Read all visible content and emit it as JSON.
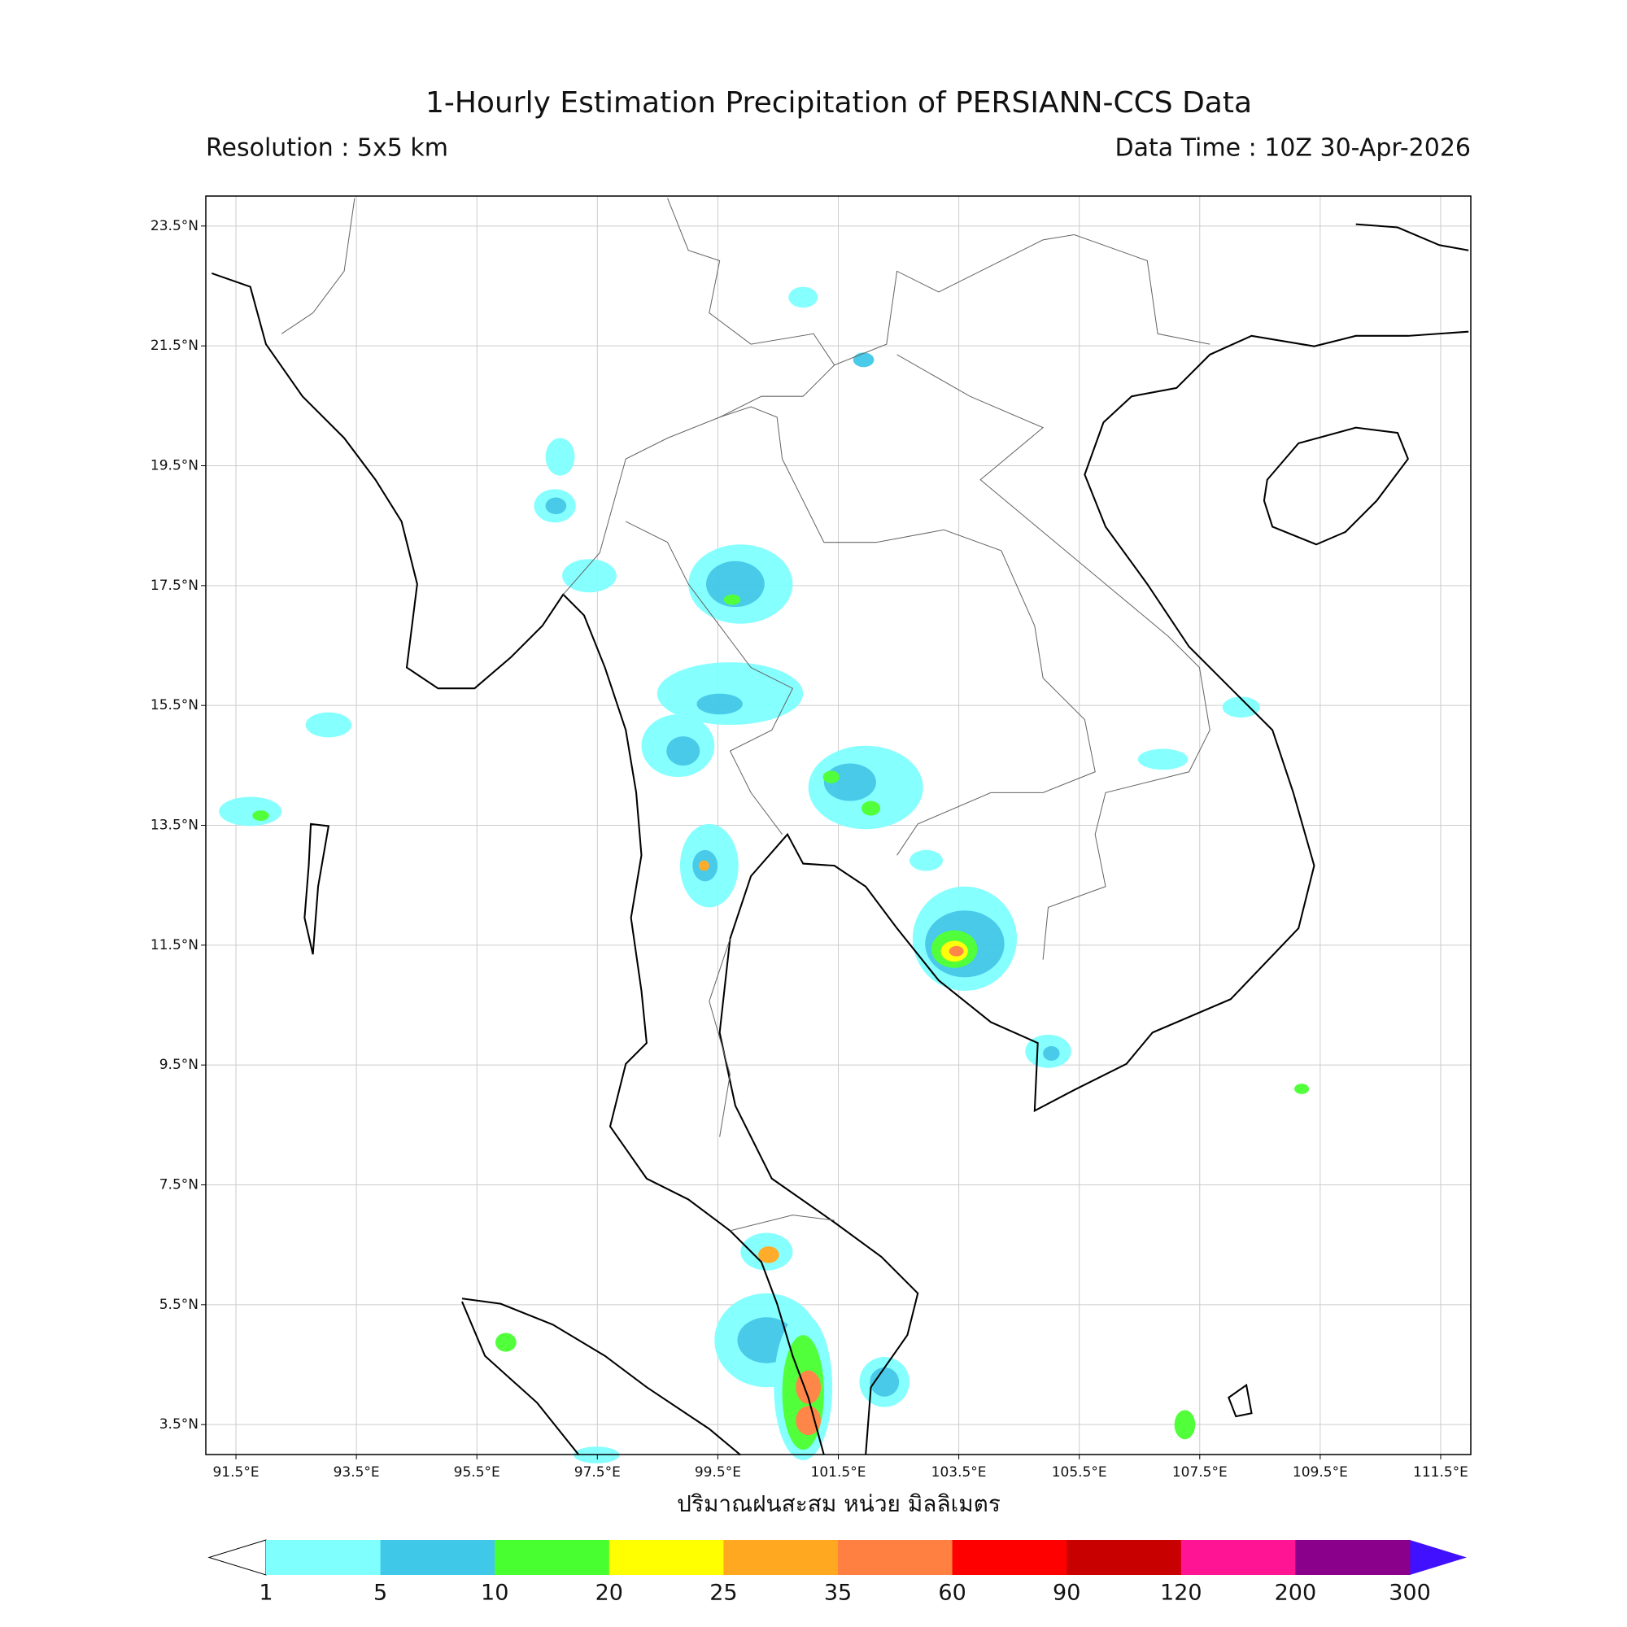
{
  "header": {
    "title": "1-Hourly Estimation Precipitation of PERSIANN-CCS Data",
    "resolution": "Resolution : 5x5 km",
    "data_time": "Data Time : 10Z 30-Apr-2026"
  },
  "map": {
    "lon_range": [
      91,
      112
    ],
    "lat_range": [
      3,
      24
    ],
    "grid": true,
    "lon_ticks": [
      {
        "value": 91.5,
        "label": "91.5°E"
      },
      {
        "value": 93.5,
        "label": "93.5°E"
      },
      {
        "value": 95.5,
        "label": "95.5°E"
      },
      {
        "value": 97.5,
        "label": "97.5°E"
      },
      {
        "value": 99.5,
        "label": "99.5°E"
      },
      {
        "value": 101.5,
        "label": "101.5°E"
      },
      {
        "value": 103.5,
        "label": "103.5°E"
      },
      {
        "value": 105.5,
        "label": "105.5°E"
      },
      {
        "value": 107.5,
        "label": "107.5°E"
      },
      {
        "value": 109.5,
        "label": "109.5°E"
      },
      {
        "value": 111.5,
        "label": "111.5°E"
      }
    ],
    "lat_ticks": [
      {
        "value": 23.5,
        "label": "23.5°N"
      },
      {
        "value": 21.5,
        "label": "21.5°N"
      },
      {
        "value": 19.5,
        "label": "19.5°N"
      },
      {
        "value": 17.5,
        "label": "17.5°N"
      },
      {
        "value": 15.5,
        "label": "15.5°N"
      },
      {
        "value": 13.5,
        "label": "13.5°N"
      },
      {
        "value": 11.5,
        "label": "11.5°N"
      },
      {
        "value": 9.5,
        "label": "9.5°N"
      },
      {
        "value": 7.5,
        "label": "7.5°N"
      },
      {
        "value": 5.5,
        "label": "5.5°N"
      },
      {
        "value": 3.5,
        "label": "3.5°N"
      }
    ]
  },
  "colorbar": {
    "label": "ปริมาณฝนสะสม หน่วย มิลลิเมตร",
    "bounds": [
      1,
      5,
      10,
      20,
      25,
      35,
      60,
      90,
      120,
      200,
      300
    ],
    "colors": [
      "#80ffff",
      "#40c8e8",
      "#48ff30",
      "#ffff00",
      "#ffa820",
      "#ff8040",
      "#ff0000",
      "#c80000",
      "#ff1493",
      "#8b008b"
    ],
    "under_color": "#ffffff",
    "over_color": "#4010ff"
  }
}
